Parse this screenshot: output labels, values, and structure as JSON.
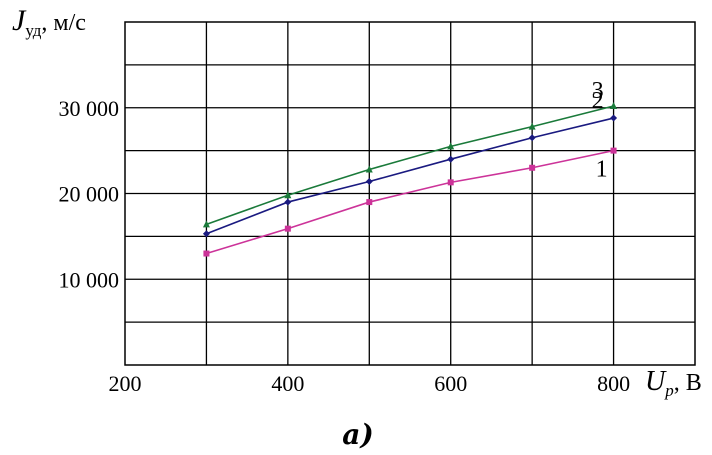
{
  "chart_data": {
    "type": "line",
    "ylabel": {
      "symbol": "J",
      "subscript": "уд",
      "unit": ", м/с"
    },
    "xlabel": {
      "symbol": "U",
      "subscript": "р",
      "unit": ", В"
    },
    "caption": "а)",
    "xlim": [
      200,
      900
    ],
    "ylim": [
      0,
      40000
    ],
    "x_ticks": [
      200,
      400,
      600,
      800
    ],
    "x_tick_labels": [
      "200",
      "400",
      "600",
      "800"
    ],
    "y_ticks": [
      10000,
      20000,
      30000
    ],
    "y_tick_labels": [
      "10 000",
      "20 000",
      "30 000"
    ],
    "grid": true,
    "series": [
      {
        "name": "1",
        "color": "#cc3399",
        "marker": "square",
        "x": [
          300,
          400,
          500,
          600,
          700,
          800
        ],
        "y": [
          13000,
          15900,
          19000,
          21300,
          23000,
          25000
        ]
      },
      {
        "name": "2",
        "color": "#1a1a80",
        "marker": "diamond",
        "x": [
          300,
          400,
          500,
          600,
          700,
          800
        ],
        "y": [
          15300,
          19000,
          21400,
          24000,
          26500,
          28800
        ]
      },
      {
        "name": "3",
        "color": "#1a7a3a",
        "marker": "triangle",
        "x": [
          300,
          400,
          500,
          600,
          700,
          800
        ],
        "y": [
          16400,
          19800,
          22800,
          25500,
          27800,
          30200
        ]
      }
    ]
  }
}
